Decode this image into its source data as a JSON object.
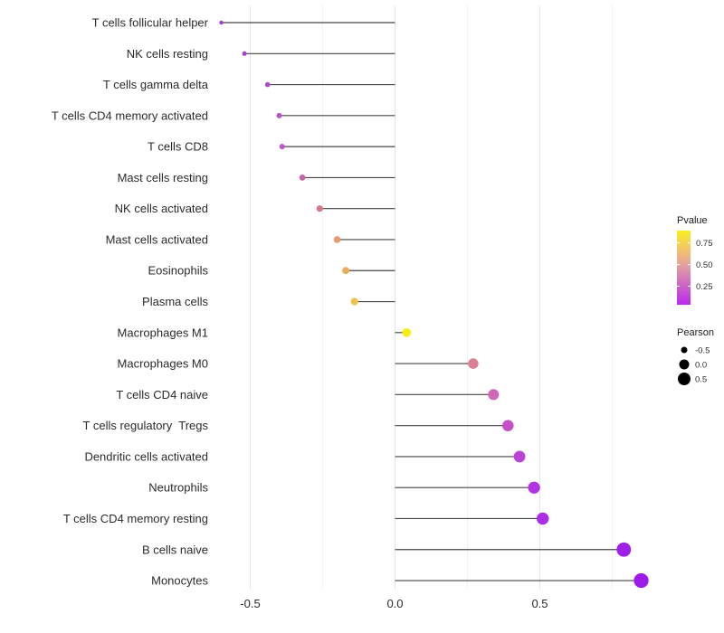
{
  "figure": {
    "background_color": "#ffffff",
    "gridline_major_color": "#e6e6e6",
    "gridline_minor_color": "#f2f2f2",
    "stem_color": "#454545",
    "axis_text_color": "#2b2b2b"
  },
  "axes": {
    "x_ticks": [
      {
        "label": "-0.5",
        "value": -0.5
      },
      {
        "label": "0.0",
        "value": 0.0
      },
      {
        "label": "0.5",
        "value": 0.5
      }
    ],
    "x_gridlines_major": [
      -0.5,
      0.0,
      0.5
    ],
    "x_gridlines_minor": [
      -0.25,
      0.25,
      0.75
    ]
  },
  "legend": {
    "pvalue": {
      "title": "Pvalue",
      "tick_labels": [
        "0.75",
        "0.50",
        "0.25"
      ],
      "tick_values": [
        0.75,
        0.5,
        0.25
      ],
      "range": [
        0.03,
        0.9
      ],
      "gradient_stops_top_to_bottom": [
        "#F9EE21",
        "#F2C669",
        "#E09BA8",
        "#CB63C4",
        "#BB29F2"
      ]
    },
    "pearson": {
      "title": "Pearson",
      "items": [
        {
          "label": "-0.5",
          "value": -0.5,
          "radius": 3.5
        },
        {
          "label": "0.0",
          "value": 0.0,
          "radius": 5.5
        },
        {
          "label": "0.5",
          "value": 0.5,
          "radius": 7.0
        }
      ],
      "dot_color": "#000000"
    }
  },
  "chart_data": {
    "type": "scatter",
    "variant": "lollipop-segments",
    "title": "",
    "xlabel": "",
    "ylabel": "",
    "x_range": [
      -0.625,
      0.9
    ],
    "stem_origin_x": 0.0,
    "size_encoding": "Pearson",
    "color_encoding": "Pvalue",
    "rows": [
      {
        "label": "T cells follicular helper",
        "pearson": -0.6,
        "color": "#A338D6"
      },
      {
        "label": "NK cells resting",
        "pearson": -0.52,
        "color": "#A63FD2"
      },
      {
        "label": "T cells gamma delta",
        "pearson": -0.44,
        "color": "#B04CD0"
      },
      {
        "label": "T cells CD4 memory activated",
        "pearson": -0.4,
        "color": "#B954CB"
      },
      {
        "label": "T cells CD8",
        "pearson": -0.39,
        "color": "#BC58CB"
      },
      {
        "label": "Mast cells resting",
        "pearson": -0.32,
        "color": "#C765A8"
      },
      {
        "label": "NK cells activated",
        "pearson": -0.26,
        "color": "#D57888"
      },
      {
        "label": "Mast cells activated",
        "pearson": -0.2,
        "color": "#E59C70"
      },
      {
        "label": "Eosinophils",
        "pearson": -0.17,
        "color": "#EBAD5C"
      },
      {
        "label": "Plasma cells",
        "pearson": -0.14,
        "color": "#EFC14E"
      },
      {
        "label": "Macrophages M1",
        "pearson": 0.04,
        "color": "#F7EC13"
      },
      {
        "label": "Macrophages M0",
        "pearson": 0.27,
        "color": "#DC8094"
      },
      {
        "label": "T cells CD4 naive",
        "pearson": 0.34,
        "color": "#CE68B9"
      },
      {
        "label": "T cells regulatory  Tregs",
        "pearson": 0.39,
        "color": "#C550C6"
      },
      {
        "label": "Dendritic cells activated",
        "pearson": 0.43,
        "color": "#BB44D8"
      },
      {
        "label": "Neutrophils",
        "pearson": 0.48,
        "color": "#B135E2"
      },
      {
        "label": "T cells CD4 memory resting",
        "pearson": 0.51,
        "color": "#AC2EE4"
      },
      {
        "label": "B cells naive",
        "pearson": 0.79,
        "color": "#9F20E8"
      },
      {
        "label": "Monocytes",
        "pearson": 0.85,
        "color": "#9D1BE9"
      }
    ]
  }
}
